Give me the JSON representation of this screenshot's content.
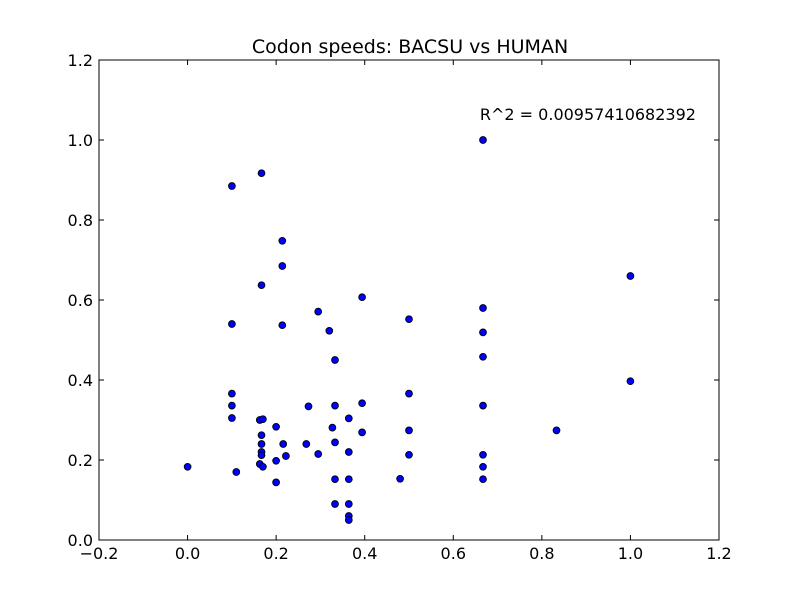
{
  "chart_data": {
    "type": "scatter",
    "title": "Codon speeds: BACSU vs HUMAN",
    "xlabel": "",
    "ylabel": "",
    "xlim": [
      -0.2,
      1.2
    ],
    "ylim": [
      0.0,
      1.2
    ],
    "xticks": [
      -0.2,
      0.0,
      0.2,
      0.4,
      0.6,
      0.8,
      1.0,
      1.2
    ],
    "yticks": [
      0.0,
      0.2,
      0.4,
      0.6,
      0.8,
      1.0,
      1.2
    ],
    "xtick_labels": [
      "−0.2",
      "0.0",
      "0.2",
      "0.4",
      "0.6",
      "0.8",
      "1.0",
      "1.2"
    ],
    "ytick_labels": [
      "0.0",
      "0.2",
      "0.4",
      "0.6",
      "0.8",
      "1.0",
      "1.2"
    ],
    "grid": false,
    "marker_color": "#0000ff",
    "marker_edge_color": "#000000",
    "annotation": {
      "text": "R^2 = 0.00957410682392",
      "x": 0.66,
      "y": 1.05
    },
    "points": [
      [
        0.0,
        0.183
      ],
      [
        0.1,
        0.885
      ],
      [
        0.1,
        0.54
      ],
      [
        0.1,
        0.366
      ],
      [
        0.1,
        0.336
      ],
      [
        0.1,
        0.305
      ],
      [
        0.11,
        0.17
      ],
      [
        0.167,
        0.917
      ],
      [
        0.167,
        0.637
      ],
      [
        0.163,
        0.3
      ],
      [
        0.17,
        0.302
      ],
      [
        0.167,
        0.262
      ],
      [
        0.167,
        0.24
      ],
      [
        0.167,
        0.22
      ],
      [
        0.167,
        0.212
      ],
      [
        0.163,
        0.19
      ],
      [
        0.17,
        0.183
      ],
      [
        0.2,
        0.283
      ],
      [
        0.2,
        0.198
      ],
      [
        0.2,
        0.144
      ],
      [
        0.214,
        0.748
      ],
      [
        0.214,
        0.685
      ],
      [
        0.214,
        0.537
      ],
      [
        0.216,
        0.24
      ],
      [
        0.222,
        0.21
      ],
      [
        0.268,
        0.24
      ],
      [
        0.273,
        0.334
      ],
      [
        0.295,
        0.571
      ],
      [
        0.295,
        0.215
      ],
      [
        0.32,
        0.523
      ],
      [
        0.327,
        0.281
      ],
      [
        0.333,
        0.45
      ],
      [
        0.333,
        0.336
      ],
      [
        0.333,
        0.244
      ],
      [
        0.333,
        0.152
      ],
      [
        0.333,
        0.09
      ],
      [
        0.364,
        0.304
      ],
      [
        0.364,
        0.22
      ],
      [
        0.364,
        0.152
      ],
      [
        0.364,
        0.09
      ],
      [
        0.364,
        0.06
      ],
      [
        0.364,
        0.05
      ],
      [
        0.394,
        0.607
      ],
      [
        0.394,
        0.342
      ],
      [
        0.394,
        0.269
      ],
      [
        0.48,
        0.153
      ],
      [
        0.5,
        0.552
      ],
      [
        0.5,
        0.366
      ],
      [
        0.5,
        0.274
      ],
      [
        0.5,
        0.213
      ],
      [
        0.667,
        1.0
      ],
      [
        0.667,
        0.58
      ],
      [
        0.667,
        0.519
      ],
      [
        0.667,
        0.458
      ],
      [
        0.667,
        0.336
      ],
      [
        0.667,
        0.213
      ],
      [
        0.667,
        0.183
      ],
      [
        0.667,
        0.152
      ],
      [
        0.833,
        0.274
      ],
      [
        1.0,
        0.66
      ],
      [
        1.0,
        0.397
      ]
    ]
  }
}
